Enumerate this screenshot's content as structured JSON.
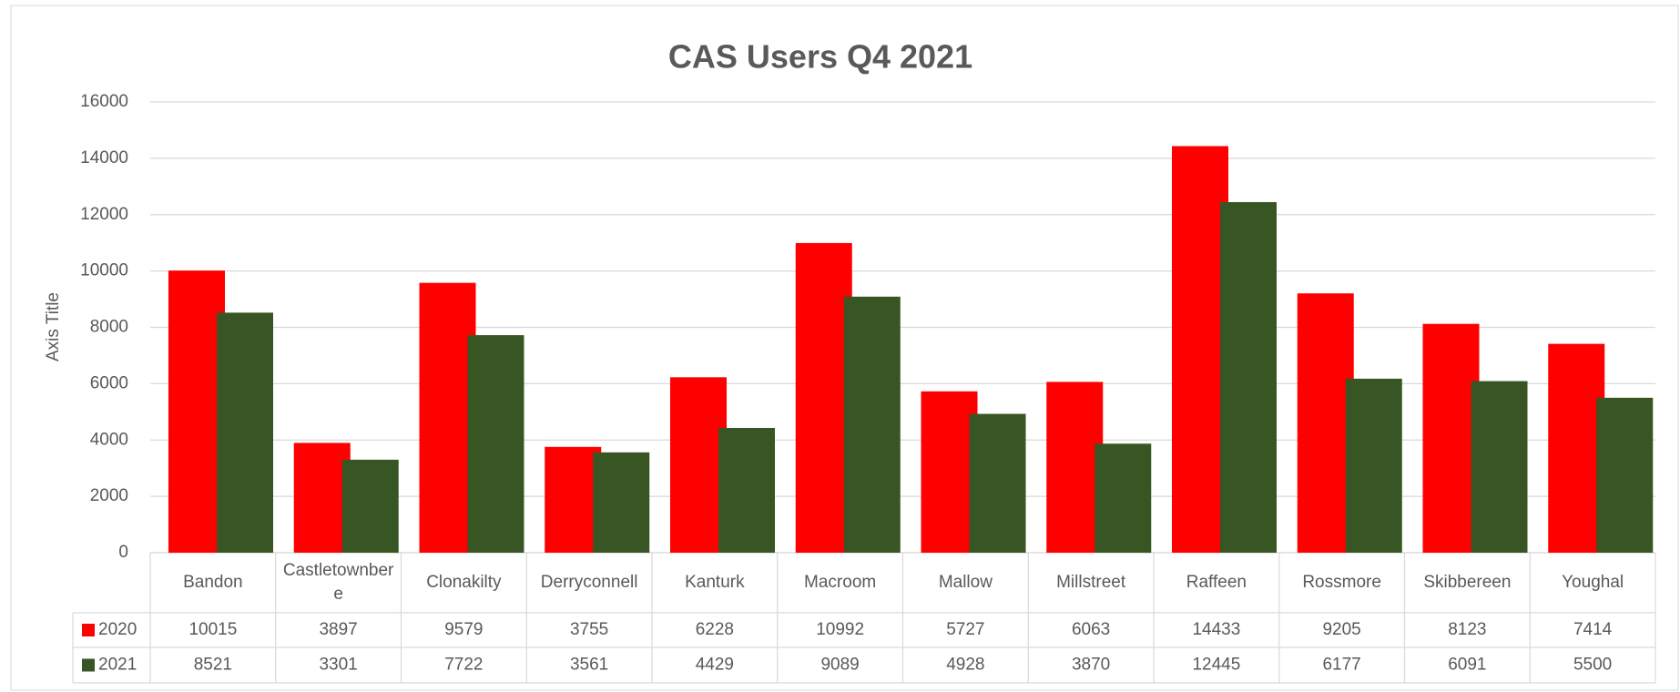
{
  "chart_data": {
    "type": "bar",
    "title": "CAS Users Q4 2021",
    "y_label": "Axis Title",
    "categories": [
      "Bandon",
      "Castletownbere",
      "Clonakilty",
      "Derryconnell",
      "Kanturk",
      "Macroom",
      "Mallow",
      "Millstreet",
      "Raffeen",
      "Rossmore",
      "Skibbereen",
      "Youghal"
    ],
    "series": [
      {
        "name": "2020",
        "color": "#ff0000",
        "values": [
          10015,
          3897,
          9579,
          3755,
          6228,
          10992,
          5727,
          6063,
          14433,
          9205,
          8123,
          7414
        ]
      },
      {
        "name": "2021",
        "color": "#375623",
        "values": [
          8521,
          3301,
          7722,
          3561,
          4429,
          9089,
          4928,
          3870,
          12445,
          6177,
          6091,
          5500
        ]
      }
    ],
    "ylim": [
      0,
      16000
    ],
    "yticks": [
      0,
      2000,
      4000,
      6000,
      8000,
      10000,
      12000,
      14000,
      16000
    ],
    "grid": true
  }
}
